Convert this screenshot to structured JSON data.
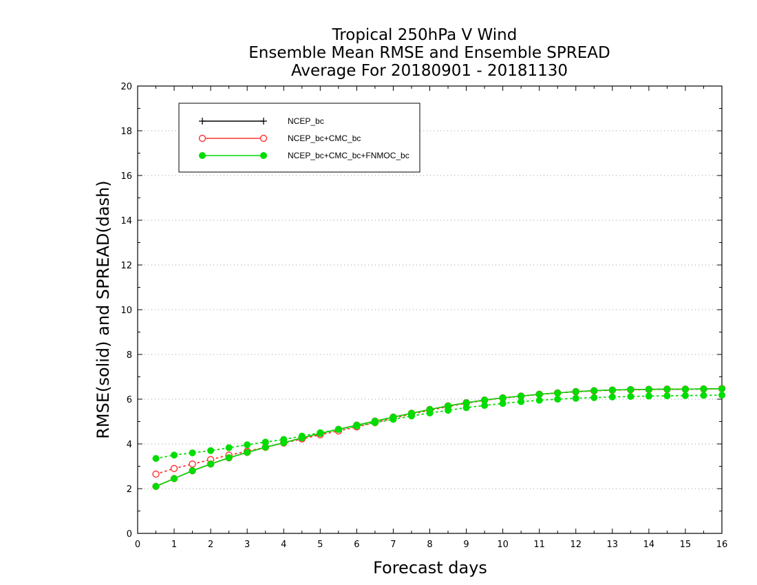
{
  "chart_data": {
    "type": "line",
    "title": [
      "Tropical 250hPa V Wind",
      "Ensemble Mean RMSE and Ensemble SPREAD",
      "Average For 20180901 - 20181130"
    ],
    "xlabel": "Forecast days",
    "ylabel": "RMSE(solid) and SPREAD(dash)",
    "xlim": [
      0,
      16
    ],
    "ylim": [
      0,
      20
    ],
    "xticks": [
      "0",
      "1",
      "2",
      "3",
      "4",
      "5",
      "6",
      "7",
      "8",
      "9",
      "10",
      "11",
      "12",
      "13",
      "14",
      "15",
      "16"
    ],
    "yticks": [
      "0",
      "2",
      "4",
      "6",
      "8",
      "10",
      "12",
      "14",
      "16",
      "18",
      "20"
    ],
    "grid": "horizontal dotted",
    "legend_position": "top-left",
    "x": [
      0.5,
      1,
      1.5,
      2,
      2.5,
      3,
      3.5,
      4,
      4.5,
      5,
      5.5,
      6,
      6.5,
      7,
      7.5,
      8,
      8.5,
      9,
      9.5,
      10,
      10.5,
      11,
      11.5,
      12,
      12.5,
      13,
      13.5,
      14,
      14.5,
      15,
      15.5,
      16
    ],
    "series": [
      {
        "name": "NCEP_bc",
        "color": "#000000",
        "marker": "plus",
        "rmse": [
          2.1,
          2.45,
          2.8,
          3.1,
          3.38,
          3.62,
          3.85,
          4.05,
          4.27,
          4.47,
          4.65,
          4.84,
          5.02,
          5.2,
          5.37,
          5.54,
          5.7,
          5.84,
          5.96,
          6.06,
          6.14,
          6.22,
          6.28,
          6.34,
          6.38,
          6.41,
          6.43,
          6.44,
          6.45,
          6.45,
          6.46,
          6.47
        ],
        "spread": []
      },
      {
        "name": "NCEP_bc+CMC_bc",
        "color": "#ff3333",
        "marker": "open-circle",
        "rmse": [
          2.1,
          2.45,
          2.8,
          3.1,
          3.38,
          3.62,
          3.85,
          4.05,
          4.27,
          4.47,
          4.65,
          4.84,
          5.02,
          5.2,
          5.37,
          5.54,
          5.7,
          5.84,
          5.96,
          6.06,
          6.14,
          6.22,
          6.28,
          6.34,
          6.38,
          6.41,
          6.43,
          6.44,
          6.45,
          6.45,
          6.46,
          6.47
        ],
        "spread": [
          2.65,
          2.9,
          3.1,
          3.3,
          3.5,
          3.67,
          3.85,
          4.04,
          4.22,
          4.41,
          4.58,
          4.76,
          4.95,
          5.15,
          5.34,
          5.5,
          5.67,
          5.82,
          5.95,
          6.05,
          6.13,
          6.22,
          6.28,
          6.33,
          6.37,
          6.4,
          6.42,
          6.43,
          6.44,
          6.44,
          6.45,
          6.47
        ]
      },
      {
        "name": "NCEP_bc+CMC_bc+FNMOC_bc",
        "color": "#00dd00",
        "marker": "filled-circle",
        "rmse": [
          2.1,
          2.45,
          2.8,
          3.1,
          3.38,
          3.62,
          3.85,
          4.05,
          4.27,
          4.47,
          4.65,
          4.84,
          5.02,
          5.2,
          5.37,
          5.54,
          5.7,
          5.84,
          5.96,
          6.06,
          6.14,
          6.22,
          6.28,
          6.34,
          6.38,
          6.41,
          6.43,
          6.44,
          6.45,
          6.45,
          6.46,
          6.47
        ],
        "spread": [
          3.35,
          3.5,
          3.6,
          3.7,
          3.83,
          3.96,
          4.08,
          4.2,
          4.35,
          4.5,
          4.65,
          4.8,
          4.95,
          5.1,
          5.25,
          5.38,
          5.5,
          5.62,
          5.72,
          5.81,
          5.89,
          5.95,
          6.0,
          6.04,
          6.07,
          6.1,
          6.12,
          6.14,
          6.15,
          6.16,
          6.17,
          6.18
        ]
      }
    ]
  }
}
